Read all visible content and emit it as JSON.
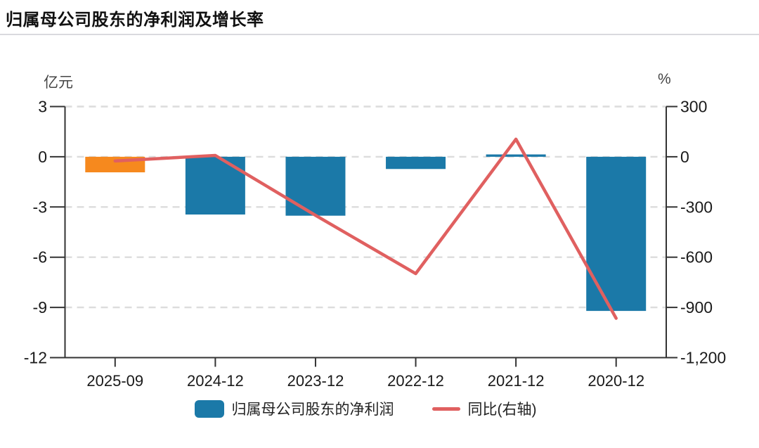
{
  "title": "归属母公司股东的净利润及增长率",
  "colors": {
    "bar": "#1b79a8",
    "bar_highlight": "#f6891e",
    "line": "#e06060",
    "grid": "#dcdcdc",
    "axis": "#333333",
    "text": "#1a1a1a",
    "divider": "#d9d9de"
  },
  "chart_data": {
    "type": "combo",
    "categories": [
      "2025-09",
      "2024-12",
      "2023-12",
      "2022-12",
      "2021-12",
      "2020-12"
    ],
    "series": [
      {
        "name": "归属母公司股东的净利润",
        "type": "bar",
        "axis": "left",
        "unit": "亿元",
        "values": [
          -0.93,
          -3.45,
          -3.52,
          -0.73,
          0.14,
          -9.21
        ],
        "item_colors": [
          "#f6891e",
          "#1b79a8",
          "#1b79a8",
          "#1b79a8",
          "#1b79a8",
          "#1b79a8"
        ],
        "color": "#1b79a8"
      },
      {
        "name": "同比(右轴)",
        "type": "line",
        "axis": "right",
        "unit": "%",
        "values": [
          -25,
          8,
          -350,
          -698,
          105,
          -965
        ],
        "color": "#e06060"
      }
    ],
    "left_axis": {
      "unit": "亿元",
      "max": 3,
      "min": -12,
      "ticks": [
        3,
        0,
        -3,
        -6,
        -9,
        -12
      ],
      "tick_labels": [
        "3",
        "0",
        "-3",
        "-6",
        "-9",
        "-12"
      ]
    },
    "right_axis": {
      "unit": "%",
      "max": 300,
      "min": -1200,
      "ticks": [
        300,
        0,
        -300,
        -600,
        -900,
        -1200
      ],
      "tick_labels": [
        "300",
        "0",
        "-300",
        "-600",
        "-900",
        "-1,200"
      ]
    },
    "grid": {
      "dashed": true,
      "horizontal_only": true
    },
    "legend_position": "bottom"
  }
}
